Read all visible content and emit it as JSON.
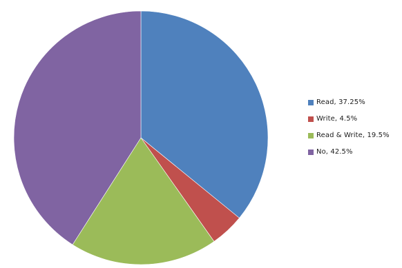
{
  "chart_data": {
    "type": "pie",
    "title": "",
    "legend_position": "right",
    "slices": [
      {
        "label": "Read",
        "value": 37.25,
        "legend_text": "Read, 37.25%",
        "color": "#4F81BD"
      },
      {
        "label": "Write",
        "value": 4.5,
        "legend_text": "Write, 4.5%",
        "color": "#C0504D"
      },
      {
        "label": "Read & Write",
        "value": 19.5,
        "legend_text": "Read & Write, 19.5%",
        "color": "#9BBB59"
      },
      {
        "label": "No",
        "value": 42.5,
        "legend_text": "No, 42.5%",
        "color": "#8064A2"
      }
    ]
  }
}
